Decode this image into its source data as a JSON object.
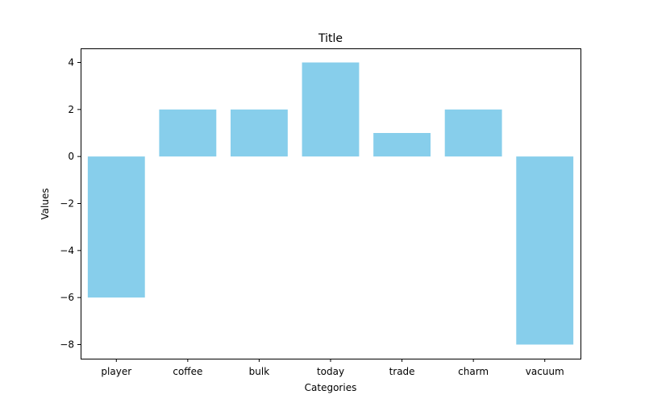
{
  "chart_data": {
    "type": "bar",
    "title": "Title",
    "xlabel": "Categories",
    "ylabel": "Values",
    "categories": [
      "player",
      "coffee",
      "bulk",
      "today",
      "trade",
      "charm",
      "vacuum"
    ],
    "values": [
      -6,
      2,
      2,
      4,
      1,
      2,
      -8
    ],
    "ylim": [
      -8.6,
      4.6
    ],
    "yticks": [
      4,
      2,
      0,
      -2,
      -4,
      -6,
      -8
    ],
    "ytick_labels": [
      "4",
      "2",
      "0",
      "−2",
      "−4",
      "−6",
      "−8"
    ],
    "grid": false,
    "bar_color": "#87ceeb",
    "axis_color": "#000000"
  }
}
